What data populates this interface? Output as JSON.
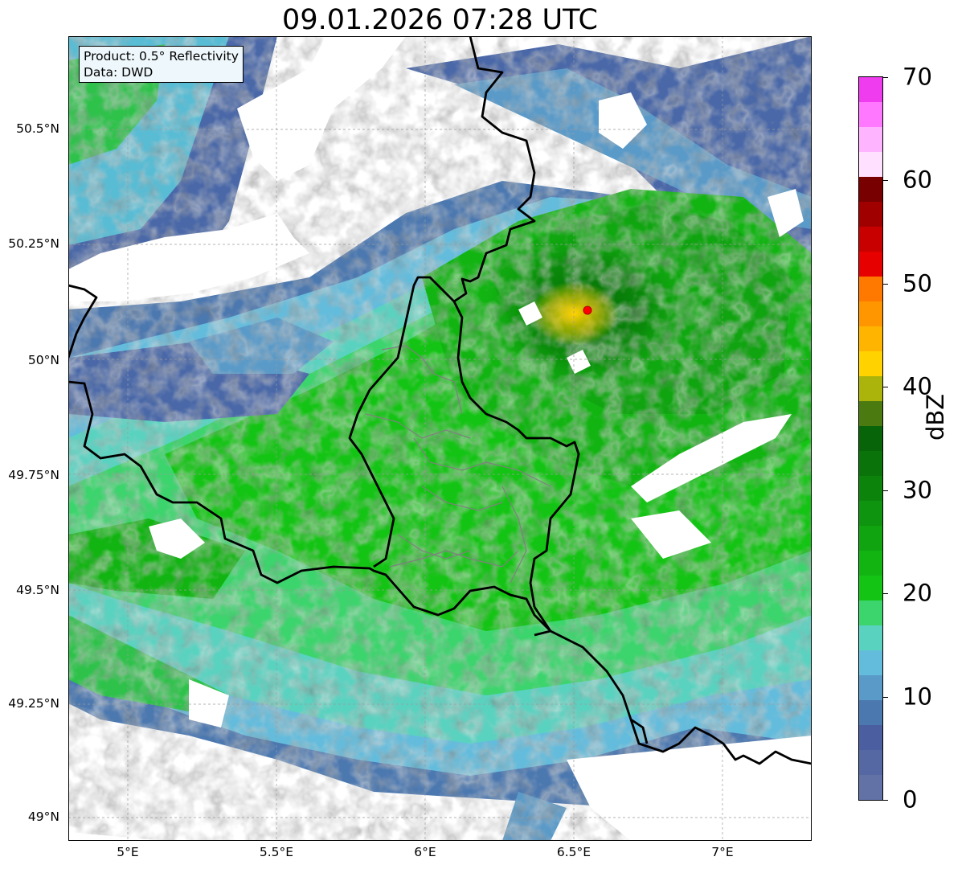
{
  "title": "09.01.2026 07:28 UTC",
  "info": {
    "product": "Product: 0.5° Reflectivity",
    "source": "Data: DWD"
  },
  "lat_labels": [
    "50.5°N",
    "50.25°N",
    "50°N",
    "49.75°N",
    "49.5°N",
    "49.25°N",
    "49°N"
  ],
  "lon_labels": [
    "5°E",
    "5.5°E",
    "6°E",
    "6.5°E",
    "7°E"
  ],
  "colorbar": {
    "label": "dBZ",
    "ticks": [
      "70",
      "60",
      "50",
      "40",
      "30",
      "20",
      "10",
      "0"
    ],
    "min": 0,
    "max": 70,
    "step": 2.5,
    "colors": [
      "#6272a6",
      "#5668a3",
      "#4a5ea0",
      "#4c78b0",
      "#5a9ac8",
      "#64bcdc",
      "#5ad2c0",
      "#3cd46c",
      "#14c414",
      "#12b412",
      "#10a410",
      "#0e940e",
      "#0c840c",
      "#0a740a",
      "#086408",
      "#4a7a10",
      "#aab40a",
      "#ffd200",
      "#ffb400",
      "#ff9600",
      "#ff7800",
      "#e60000",
      "#c80000",
      "#a00000",
      "#780000",
      "#ffe0ff",
      "#ffb4ff",
      "#ff78ff",
      "#ee3cee"
    ]
  },
  "radar_site": {
    "lat": 50.11,
    "lon": 6.55,
    "color": "#ff0000"
  },
  "extent": {
    "lon_min": 4.8,
    "lon_max": 7.3,
    "lat_min": 48.95,
    "lat_max": 50.7
  }
}
